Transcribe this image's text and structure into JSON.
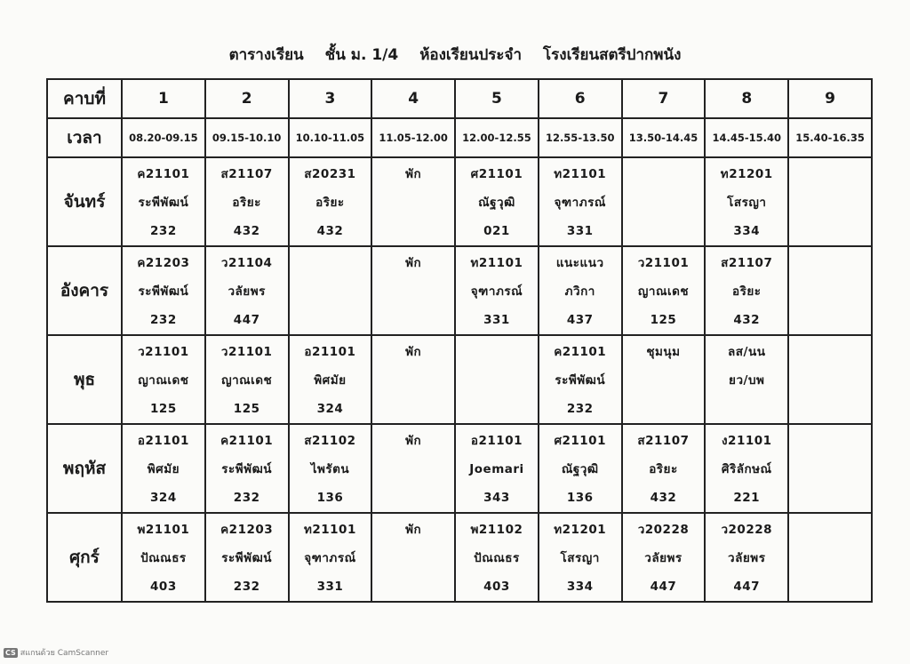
{
  "title": {
    "part1": "ตารางเรียน",
    "part2": "ชั้น ม. 1/4",
    "part3": "ห้องเรียนประจำ",
    "part4": "โรงเรียนสตรีปากพนัง"
  },
  "header": {
    "period_label": "คาบที่",
    "periods": [
      "1",
      "2",
      "3",
      "4",
      "5",
      "6",
      "7",
      "8",
      "9"
    ]
  },
  "time": {
    "label": "เวลา",
    "slots": [
      "08.20-09.15",
      "09.15-10.10",
      "10.10-11.05",
      "11.05-12.00",
      "12.00-12.55",
      "12.55-13.50",
      "13.50-14.45",
      "14.45-15.40",
      "15.40-16.35"
    ]
  },
  "days": [
    {
      "name": "จันทร์",
      "cells": [
        [
          "ค21101",
          "ระพีพัฒน์",
          "232"
        ],
        [
          "ส21107",
          "อริยะ",
          "432"
        ],
        [
          "ส20231",
          "อริยะ",
          "432"
        ],
        [
          "พัก"
        ],
        [
          "ศ21101",
          "ณัฐวุฒิ",
          "021"
        ],
        [
          "ท21101",
          "จุฑาภรณ์",
          "331"
        ],
        [],
        [
          "ท21201",
          "โสรญา",
          "334"
        ],
        []
      ]
    },
    {
      "name": "อังคาร",
      "cells": [
        [
          "ค21203",
          "ระพีพัฒน์",
          "232"
        ],
        [
          "ว21104",
          "วลัยพร",
          "447"
        ],
        [],
        [
          "พัก"
        ],
        [
          "ท21101",
          "จุฑาภรณ์",
          "331"
        ],
        [
          "แนะแนว",
          "ภวิกา",
          "437"
        ],
        [
          "ว21101",
          "ญาณเดช",
          "125"
        ],
        [
          "ส21107",
          "อริยะ",
          "432"
        ],
        []
      ]
    },
    {
      "name": "พุธ",
      "cells": [
        [
          "ว21101",
          "ญาณเดช",
          "125"
        ],
        [
          "ว21101",
          "ญาณเดช",
          "125"
        ],
        [
          "อ21101",
          "พิศมัย",
          "324"
        ],
        [
          "พัก"
        ],
        [],
        [
          "ค21101",
          "ระพีพัฒน์",
          "232"
        ],
        [
          "ชุมนุม"
        ],
        [
          "ลส/นน",
          "ยว/บพ"
        ],
        []
      ]
    },
    {
      "name": "พฤหัส",
      "cells": [
        [
          "อ21101",
          "พิศมัย",
          "324"
        ],
        [
          "ค21101",
          "ระพีพัฒน์",
          "232"
        ],
        [
          "ส21102",
          "ไพรัตน",
          "136"
        ],
        [
          "พัก"
        ],
        [
          "อ21101",
          "Joemari",
          "343"
        ],
        [
          "ศ21101",
          "ณัฐวุฒิ",
          "136"
        ],
        [
          "ส21107",
          "อริยะ",
          "432"
        ],
        [
          "ง21101",
          "ศิริลักษณ์",
          "221"
        ],
        []
      ]
    },
    {
      "name": "ศุกร์",
      "cells": [
        [
          "พ21101",
          "ปัณณธร",
          "403"
        ],
        [
          "ค21203",
          "ระพีพัฒน์",
          "232"
        ],
        [
          "ท21101",
          "จุฑาภรณ์",
          "331"
        ],
        [
          "พัก"
        ],
        [
          "พ21102",
          "ปัณณธร",
          "403"
        ],
        [
          "ท21201",
          "โสรญา",
          "334"
        ],
        [
          "ว20228",
          "วลัยพร",
          "447"
        ],
        [
          "ว20228",
          "วลัยพร",
          "447"
        ],
        []
      ]
    }
  ],
  "watermark": {
    "logo": "CS",
    "text": "สแกนด้วย CamScanner"
  }
}
